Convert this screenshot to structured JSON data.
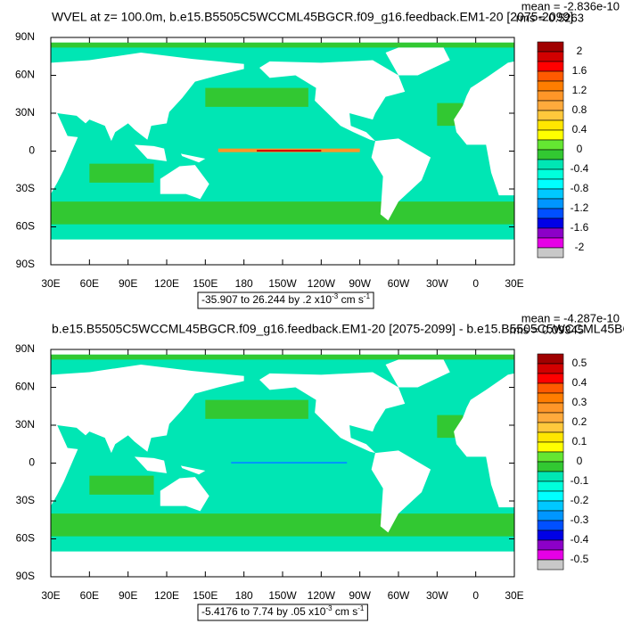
{
  "panels": [
    {
      "title": "WVEL at z= 100.0m, b.e15.B5505C5WCCML45BGCR.f09_g16.feedback.EM1-20 [2075-2099]",
      "mean": "mean = -2.836e-10",
      "rms": "rms = 0.5263",
      "ylabels": [
        "90N",
        "60N",
        "30N",
        "0",
        "30S",
        "60S",
        "90S"
      ],
      "xlabels": [
        "30E",
        "60E",
        "90E",
        "120E",
        "150E",
        "180",
        "150W",
        "120W",
        "90W",
        "60W",
        "30W",
        "0",
        "30E"
      ],
      "colorbar_labels": [
        "2",
        "1.6",
        "1.2",
        "0.8",
        "0.4",
        "0",
        "-0.4",
        "-0.8",
        "-1.2",
        "-1.6",
        "-2"
      ],
      "info": {
        "text": "-35.907 to 26.244 by .2 x10",
        "exp": "-3",
        "unit": " cm s",
        "unit_exp": "-1"
      }
    },
    {
      "title": "b.e15.B5505C5WCCML45BGCR.f09_g16.feedback.EM1-20 [2075-2099] - b.e15.B5505C5WCCML45BC",
      "mean": "mean = -4.287e-10",
      "rms": "rms = 0.09345",
      "ylabels": [
        "90N",
        "60N",
        "30N",
        "0",
        "30S",
        "60S",
        "90S"
      ],
      "xlabels": [
        "30E",
        "60E",
        "90E",
        "120E",
        "150E",
        "180",
        "150W",
        "120W",
        "90W",
        "60W",
        "30W",
        "0",
        "30E"
      ],
      "colorbar_labels": [
        "0.5",
        "0.4",
        "0.3",
        "0.2",
        "0.1",
        "0",
        "-0.1",
        "-0.2",
        "-0.3",
        "-0.4",
        "-0.5"
      ],
      "info": {
        "text": "-5.4176 to 7.74 by .05 x10",
        "exp": "-3",
        "unit": " cm s",
        "unit_exp": "-1"
      }
    }
  ],
  "colorbar_colors": [
    "#a00000",
    "#d20000",
    "#ff0000",
    "#ff5a00",
    "#ff7d00",
    "#ff9628",
    "#ffaa3c",
    "#ffc83c",
    "#ffe600",
    "#ffff00",
    "#64e632",
    "#32c832",
    "#00e6b4",
    "#00ffdc",
    "#00ffff",
    "#00c8ff",
    "#0096ff",
    "#0050ff",
    "#0000e6",
    "#8c00c8",
    "#e600e6",
    "#c8c8c8"
  ]
}
